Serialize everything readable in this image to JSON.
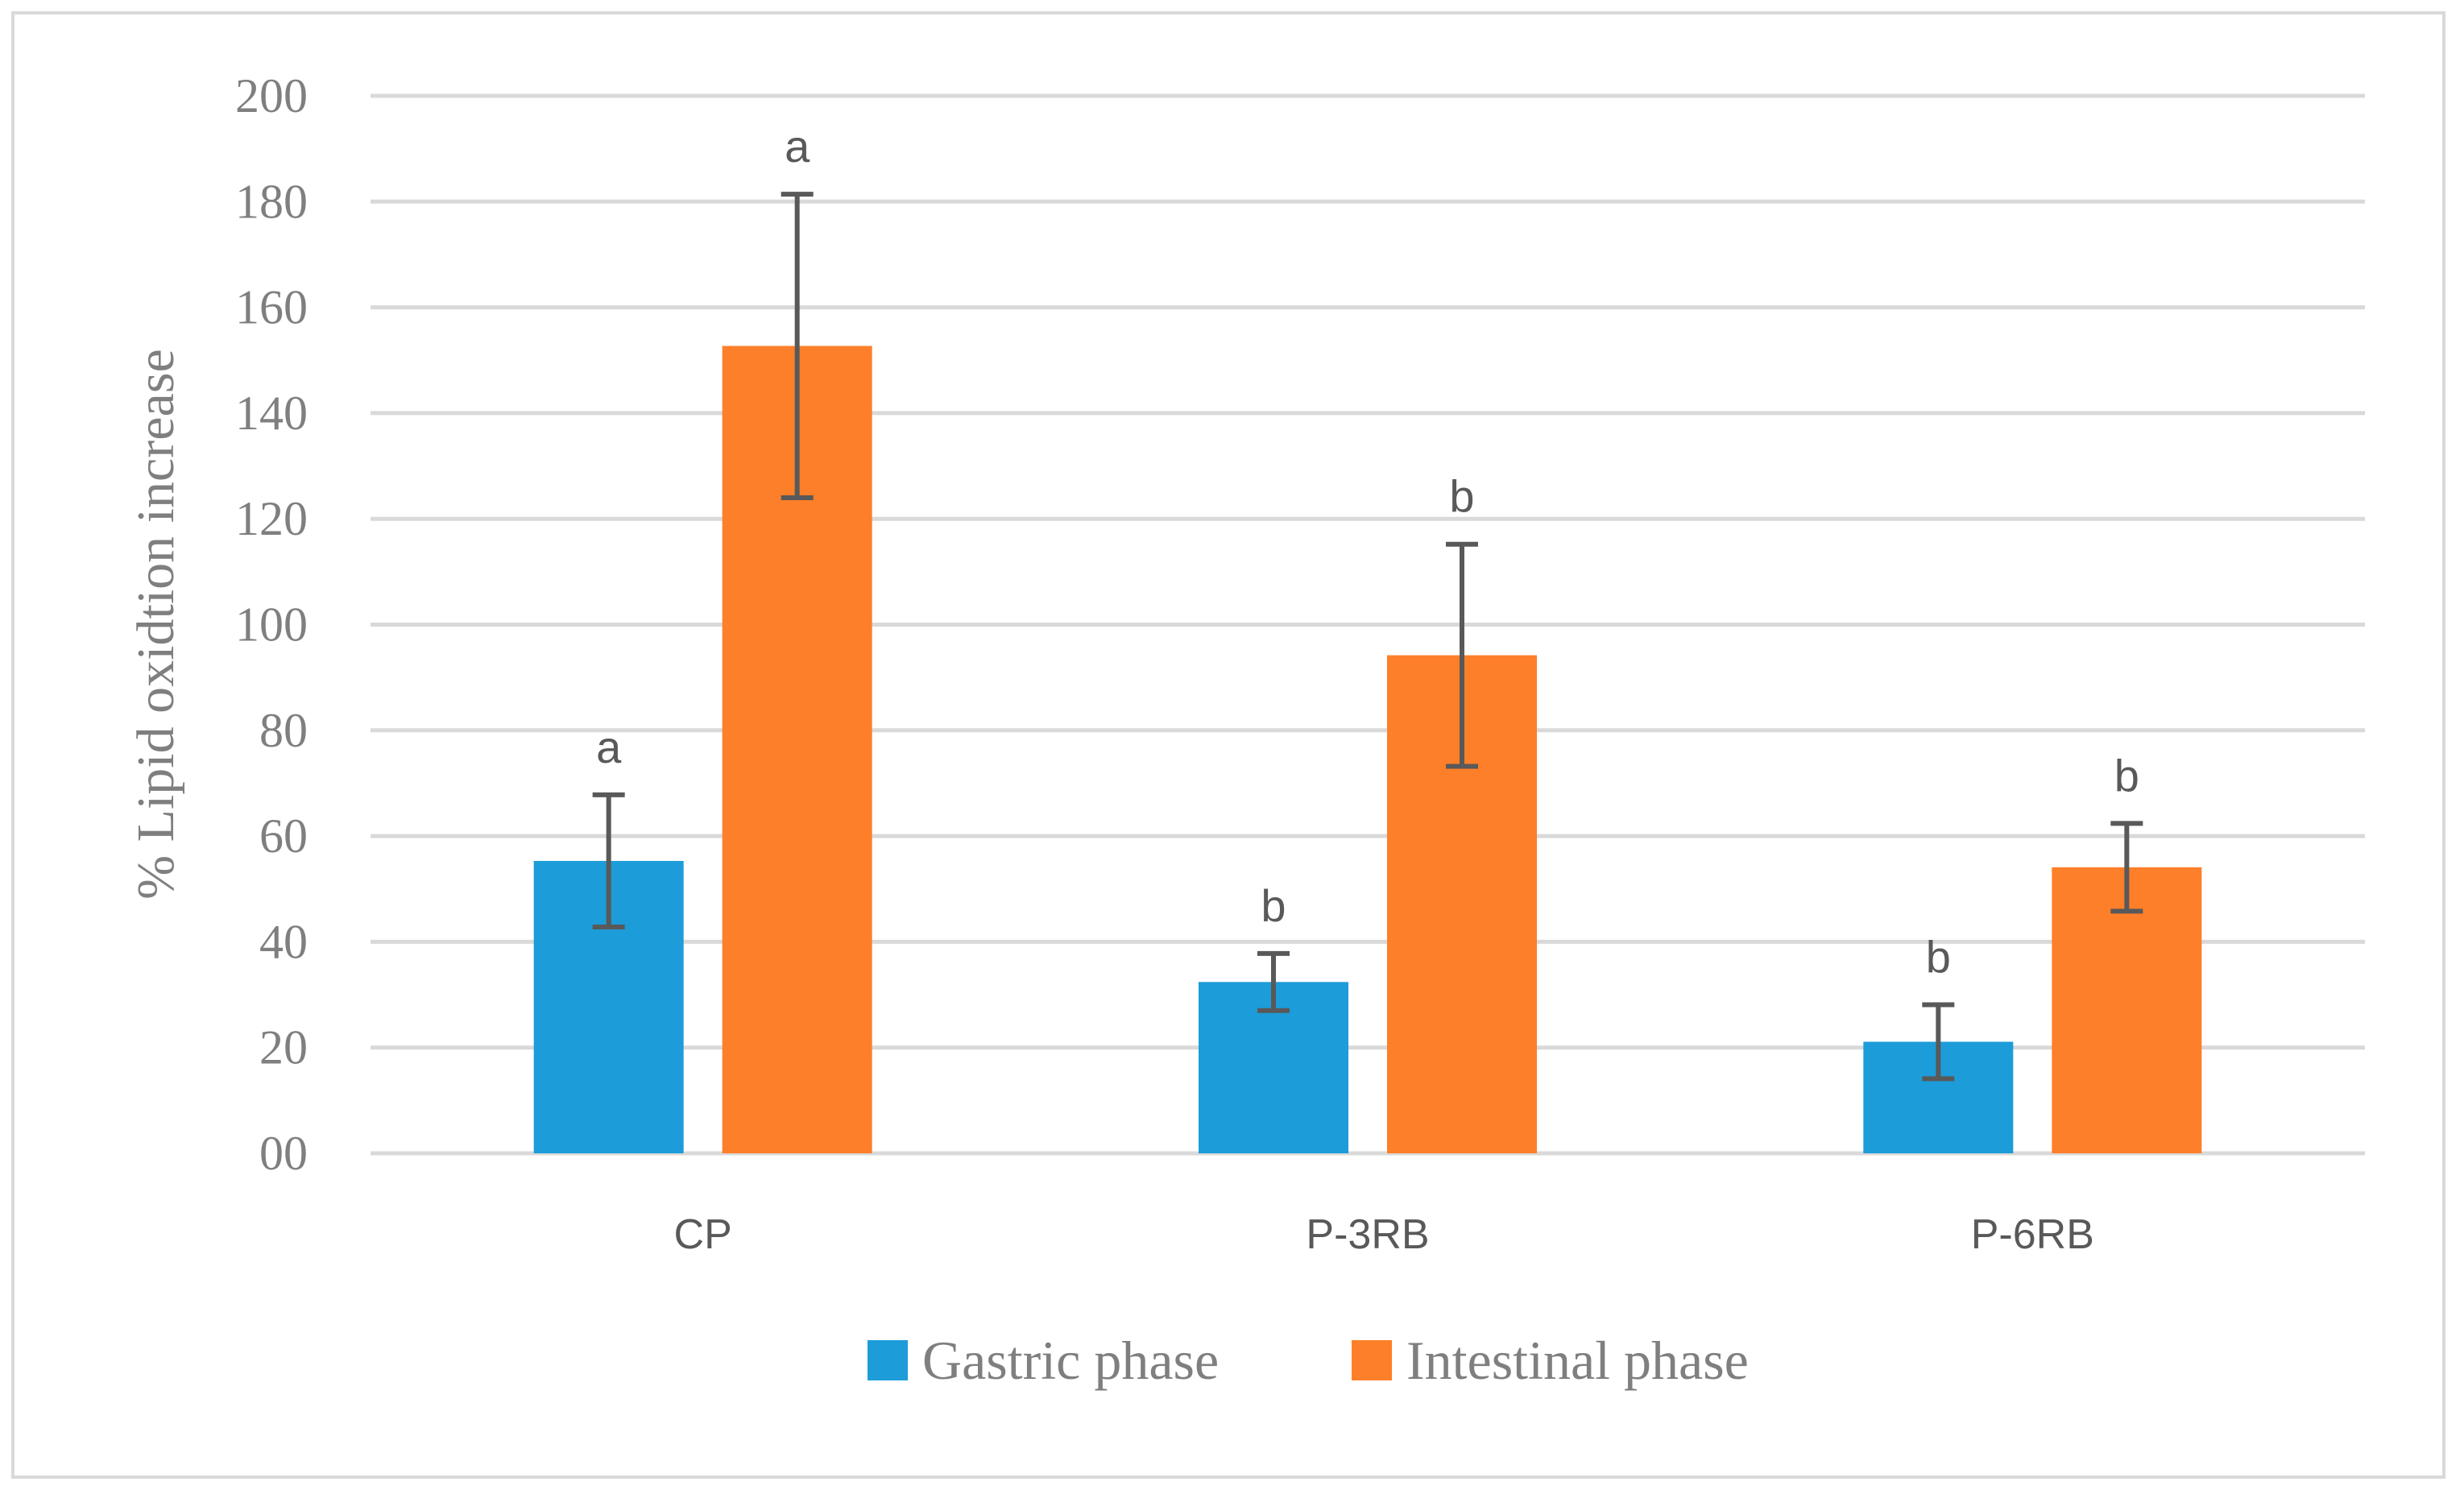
{
  "chart_data": {
    "type": "bar",
    "title": "",
    "xlabel": "",
    "ylabel": "%  Lipid oxidtion increase",
    "ylim": [
      0,
      200
    ],
    "yticks": [
      0,
      20,
      40,
      60,
      80,
      100,
      120,
      140,
      160,
      180,
      200
    ],
    "ytick_labels": [
      "00",
      "20",
      "40",
      "60",
      "80",
      "100",
      "120",
      "140",
      "160",
      "180",
      "200"
    ],
    "grid": true,
    "legend": "bottom",
    "categories": [
      "CP",
      "P-3RB",
      "P-6RB"
    ],
    "series": [
      {
        "name": "Gastric phase",
        "color": "#1C9CD8",
        "values": [
          55.3,
          32.4,
          21.1
        ],
        "errors": [
          12.5,
          5.4,
          7.0
        ],
        "letters": [
          "a",
          "b",
          "b"
        ]
      },
      {
        "name": "Intestinal phase",
        "color": "#FE7F29",
        "values": [
          152.7,
          94.2,
          54.1
        ],
        "errors": [
          28.7,
          21.0,
          8.3
        ],
        "letters": [
          "a",
          "b",
          "b"
        ]
      }
    ]
  }
}
